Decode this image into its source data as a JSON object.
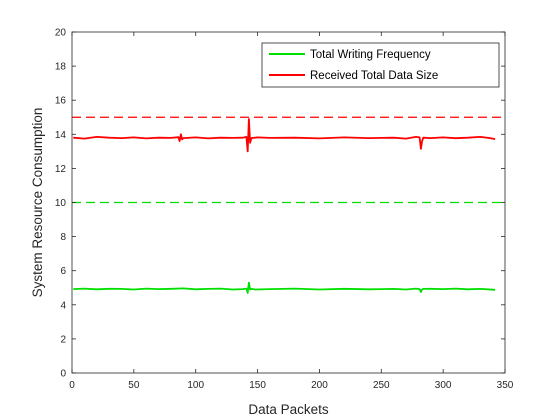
{
  "chart_data": {
    "type": "line",
    "xlabel": "Data Packets",
    "ylabel": "System Resource Consumption",
    "xlim": [
      0,
      350
    ],
    "ylim": [
      0,
      20
    ],
    "xticks": [
      0,
      50,
      100,
      150,
      200,
      250,
      300,
      350
    ],
    "yticks": [
      0,
      2,
      4,
      6,
      8,
      10,
      12,
      14,
      16,
      18,
      20
    ],
    "grid": false,
    "box": true,
    "legend_position": "top-right",
    "series": [
      {
        "name": "Total Writing Frequency",
        "color": "#00e000",
        "x": [
          1,
          10,
          20,
          30,
          40,
          50,
          60,
          70,
          80,
          90,
          100,
          110,
          120,
          130,
          138,
          141,
          142,
          143,
          144,
          145,
          148,
          160,
          180,
          200,
          220,
          240,
          260,
          270,
          278,
          281,
          282,
          283,
          284,
          290,
          300,
          310,
          320,
          330,
          342
        ],
        "y": [
          4.92,
          4.95,
          4.91,
          4.94,
          4.93,
          4.9,
          4.95,
          4.92,
          4.94,
          4.96,
          4.91,
          4.93,
          4.95,
          4.9,
          4.92,
          4.95,
          4.7,
          5.3,
          4.9,
          4.93,
          4.9,
          4.92,
          4.95,
          4.9,
          4.94,
          4.91,
          4.93,
          4.9,
          4.95,
          4.92,
          4.75,
          4.9,
          4.93,
          4.94,
          4.92,
          4.95,
          4.91,
          4.93,
          4.88
        ]
      },
      {
        "name": "Received Total Data Size",
        "color": "#ff0000",
        "x": [
          1,
          10,
          20,
          30,
          40,
          50,
          60,
          70,
          80,
          86,
          87,
          88,
          89,
          90,
          100,
          110,
          120,
          130,
          138,
          141,
          142,
          143,
          144,
          145,
          150,
          160,
          180,
          200,
          220,
          240,
          260,
          270,
          278,
          281,
          282,
          283,
          284,
          290,
          300,
          310,
          320,
          330,
          338,
          342
        ],
        "y": [
          13.8,
          13.75,
          13.85,
          13.8,
          13.78,
          13.82,
          13.76,
          13.8,
          13.79,
          13.83,
          13.6,
          14.0,
          13.7,
          13.78,
          13.82,
          13.76,
          13.8,
          13.79,
          13.8,
          13.85,
          13.0,
          14.9,
          13.5,
          13.78,
          13.82,
          13.79,
          13.8,
          13.76,
          13.82,
          13.78,
          13.8,
          13.75,
          13.85,
          13.82,
          13.15,
          13.6,
          13.8,
          13.78,
          13.82,
          13.77,
          13.8,
          13.85,
          13.78,
          13.72
        ]
      }
    ],
    "reference_lines": [
      {
        "y": 15,
        "color": "#ff0000",
        "style": "dashed"
      },
      {
        "y": 10,
        "color": "#00e000",
        "style": "dashed"
      }
    ]
  }
}
